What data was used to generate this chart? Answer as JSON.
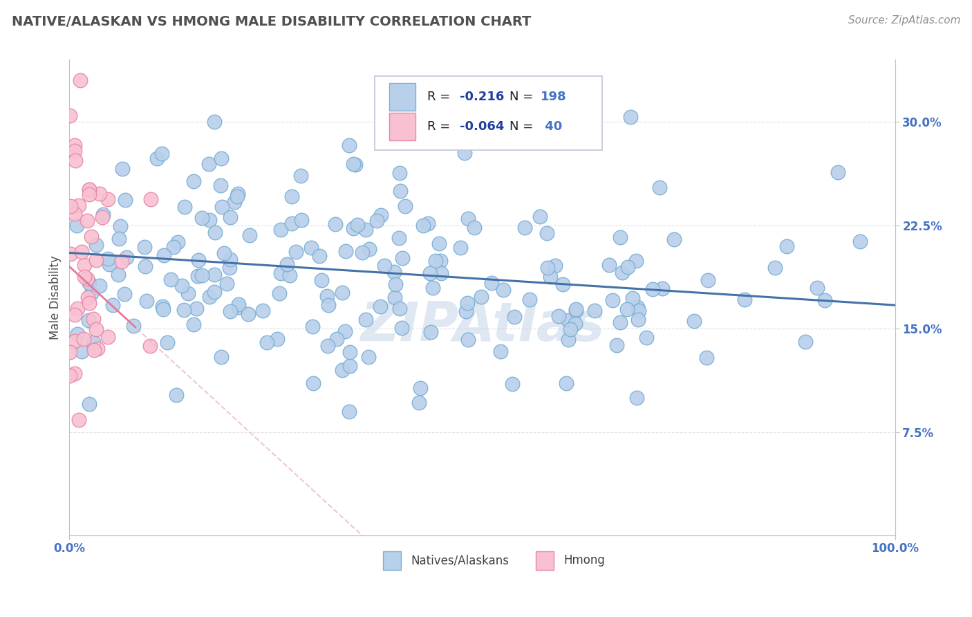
{
  "title": "NATIVE/ALASKAN VS HMONG MALE DISABILITY CORRELATION CHART",
  "source_text": "Source: ZipAtlas.com",
  "ylabel": "Male Disability",
  "xlim": [
    0.0,
    1.0
  ],
  "ylim": [
    0.0,
    0.345
  ],
  "yticks": [
    0.075,
    0.15,
    0.225,
    0.3
  ],
  "ytick_labels": [
    "7.5%",
    "15.0%",
    "22.5%",
    "30.0%"
  ],
  "xticks": [
    0.0,
    1.0
  ],
  "xtick_labels": [
    "0.0%",
    "100.0%"
  ],
  "blue_color": "#b8d0ea",
  "blue_edge_color": "#7aafd4",
  "pink_color": "#f8c0d0",
  "pink_edge_color": "#e888a8",
  "blue_line_color": "#4472a8",
  "pink_line_color": "#e87898",
  "pink_line_dash_color": "#e8b0c0",
  "title_color": "#505050",
  "source_color": "#909090",
  "watermark_text": "ZIPAtlas",
  "watermark_color": "#c8d8ea",
  "legend_r_color": "#2040a0",
  "legend_n_color": "#4472c4",
  "grid_color": "#d8d8d8",
  "bg_color": "#ffffff",
  "blue_intercept": 0.205,
  "blue_slope": -0.038,
  "pink_intercept": 0.195,
  "pink_slope": -0.55,
  "blue_n": 198,
  "pink_n": 40
}
